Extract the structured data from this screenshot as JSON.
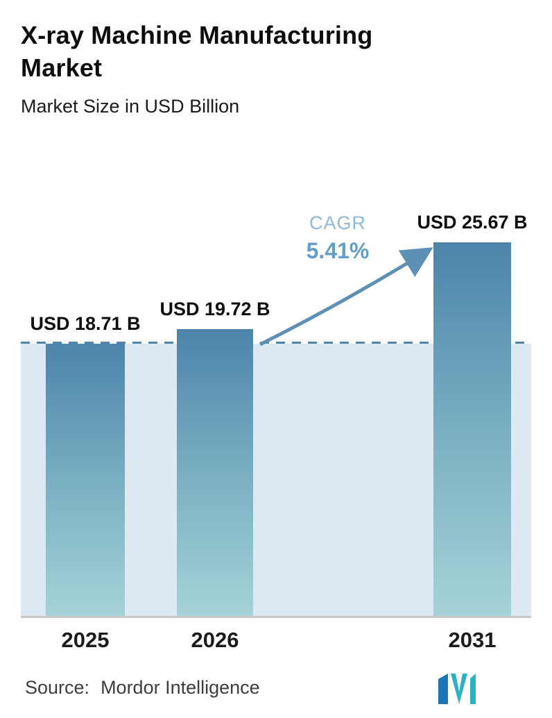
{
  "chart_data": {
    "type": "bar",
    "title": "X-ray Machine Manufacturing Market",
    "subtitle": "Market Size in USD Billion",
    "categories": [
      "2025",
      "2026",
      "2031"
    ],
    "values": [
      18.71,
      19.72,
      25.67
    ],
    "value_labels": [
      "USD 18.71 B",
      "USD 19.72 B",
      "USD 25.67 B"
    ],
    "unit": "USD Billion",
    "ylim": [
      0,
      27
    ],
    "grid": "off",
    "legend": "none",
    "reference_line": {
      "value": 18.71,
      "style": "dashed"
    },
    "cagr": {
      "label": "CAGR",
      "value": "5.41%"
    }
  },
  "footer": {
    "source_label": "Source:",
    "source_value": "Mordor Intelligence",
    "logo": "mordor-intelligence-logo"
  },
  "colors": {
    "bar_gradient_top": "#4c84ab",
    "bar_gradient_bottom": "#a5d2d8",
    "shaded_area": "#dde9f2",
    "reference_line": "#4e86ac",
    "arrow": "#5d90b5",
    "cagr_label": "#8cb8d7",
    "cagr_value": "#5f9fca",
    "axis_line": "#c9c9c9",
    "logo_blue": "#1c74b9",
    "logo_teal": "#2cb1c7"
  }
}
